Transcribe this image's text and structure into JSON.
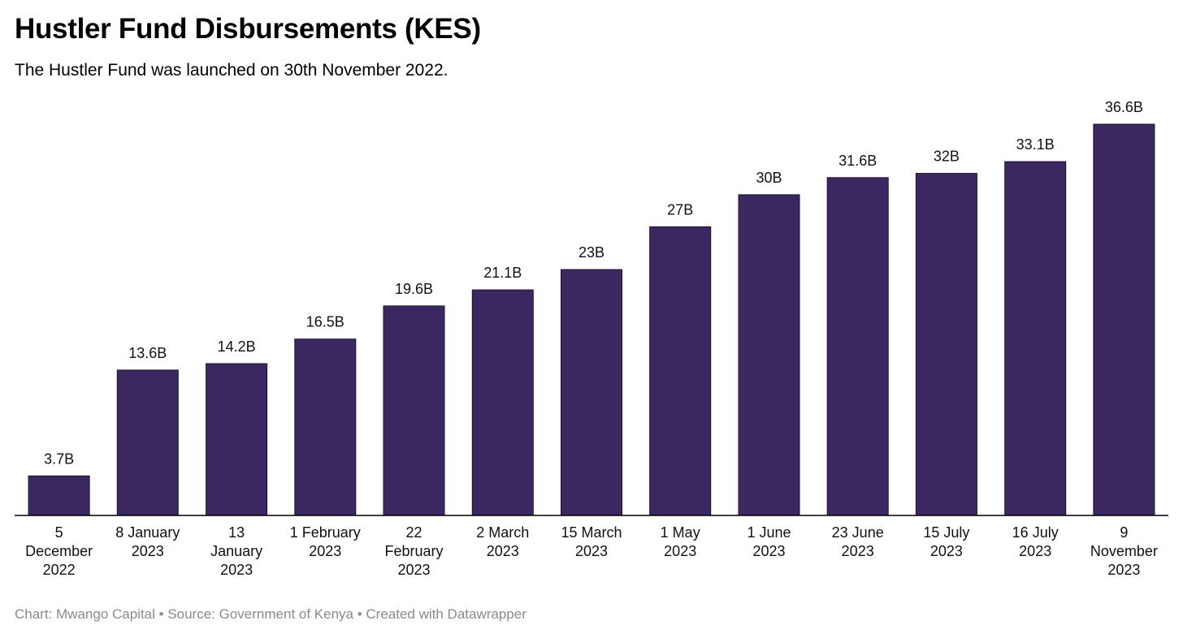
{
  "header": {
    "title": "Hustler Fund Disbursements (KES)",
    "subtitle": "The Hustler Fund was launched on 30th November 2022."
  },
  "footer": {
    "credit": "Chart: Mwango Capital • Source: Government of Kenya • Created with Datawrapper"
  },
  "colors": {
    "bar": "#3c2860",
    "footer_text": "#8a8a8a"
  },
  "chart_data": {
    "type": "bar",
    "title": "Hustler Fund Disbursements (KES)",
    "subtitle": "The Hustler Fund was launched on 30th November 2022.",
    "xlabel": "",
    "ylabel": "",
    "grid": false,
    "ylim": [
      0,
      36.6
    ],
    "categories": [
      [
        "5",
        "December",
        "2022"
      ],
      [
        "8 January",
        "2023"
      ],
      [
        "13",
        "January",
        "2023"
      ],
      [
        "1 February",
        "2023"
      ],
      [
        "22",
        "February",
        "2023"
      ],
      [
        "2 March",
        "2023"
      ],
      [
        "15 March",
        "2023"
      ],
      [
        "1 May",
        "2023"
      ],
      [
        "1 June",
        "2023"
      ],
      [
        "23 June",
        "2023"
      ],
      [
        "15 July",
        "2023"
      ],
      [
        "16 July",
        "2023"
      ],
      [
        "9",
        "November",
        "2023"
      ]
    ],
    "values": [
      3.7,
      13.6,
      14.2,
      16.5,
      19.6,
      21.1,
      23,
      27,
      30,
      31.6,
      32,
      33.1,
      36.6
    ],
    "data_labels": [
      "3.7B",
      "13.6B",
      "14.2B",
      "16.5B",
      "19.6B",
      "21.1B",
      "23B",
      "27B",
      "30B",
      "31.6B",
      "32B",
      "33.1B",
      "36.6B"
    ]
  }
}
